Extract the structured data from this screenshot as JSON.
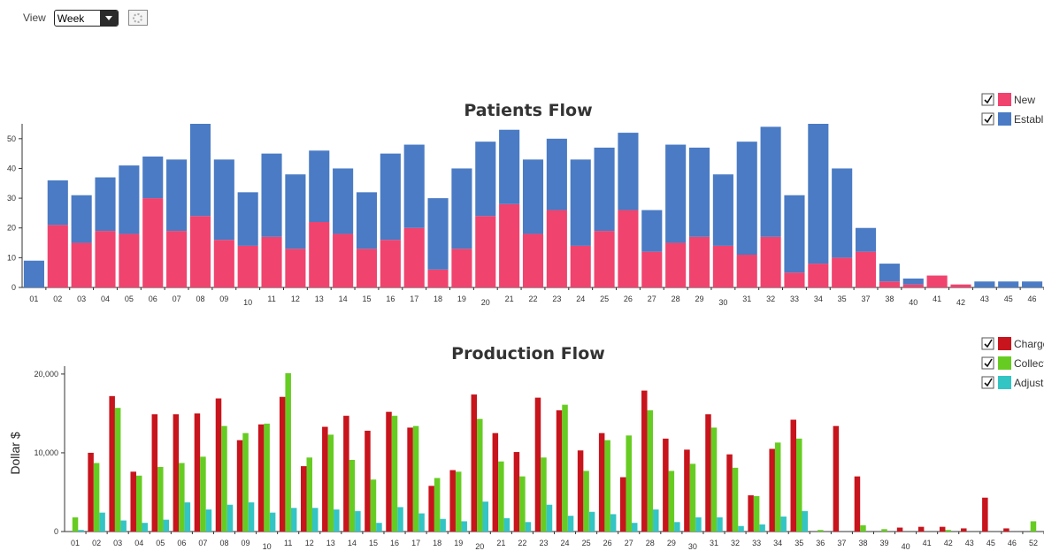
{
  "toolbar": {
    "view_label": "View",
    "view_value": "Week",
    "settings_icon": "gear-icon"
  },
  "chart_data": [
    {
      "type": "bar",
      "stacked": true,
      "title": "Patients Flow",
      "xlabel": "",
      "ylabel": "",
      "ylim": [
        0,
        55
      ],
      "yticks": [
        0,
        10,
        20,
        30,
        40,
        50
      ],
      "grid": false,
      "legend_position": "top-right",
      "categories": [
        "01",
        "02",
        "03",
        "04",
        "05",
        "06",
        "07",
        "08",
        "09",
        "10",
        "11",
        "12",
        "13",
        "14",
        "15",
        "16",
        "17",
        "18",
        "19",
        "20",
        "21",
        "22",
        "23",
        "24",
        "25",
        "26",
        "27",
        "28",
        "29",
        "30",
        "31",
        "32",
        "33",
        "34",
        "35",
        "37",
        "38",
        "40",
        "41",
        "42",
        "43",
        "45",
        "46"
      ],
      "series": [
        {
          "name": "New",
          "color": "#f0436e",
          "values": [
            0,
            21,
            15,
            19,
            18,
            30,
            19,
            24,
            16,
            14,
            17,
            13,
            22,
            18,
            13,
            16,
            20,
            6,
            13,
            24,
            28,
            18,
            26,
            14,
            19,
            26,
            12,
            15,
            17,
            14,
            11,
            17,
            5,
            8,
            10,
            12,
            2,
            1,
            4,
            1,
            0,
            0,
            0
          ]
        },
        {
          "name": "Established",
          "color": "#4a7bc4",
          "values": [
            9,
            15,
            16,
            18,
            23,
            14,
            24,
            31,
            27,
            18,
            28,
            25,
            24,
            22,
            19,
            29,
            28,
            24,
            27,
            25,
            25,
            25,
            24,
            29,
            28,
            26,
            14,
            33,
            30,
            24,
            38,
            37,
            26,
            47,
            30,
            8,
            6,
            2,
            0,
            0,
            2,
            2,
            2
          ]
        }
      ]
    },
    {
      "type": "bar",
      "title": "Production Flow",
      "xlabel": "",
      "ylabel": "Dollar $",
      "ylim": [
        0,
        21000
      ],
      "yticks": [
        "0",
        "10,000",
        "20,000"
      ],
      "grid": false,
      "legend_position": "top-right",
      "categories": [
        "01",
        "02",
        "03",
        "04",
        "05",
        "06",
        "07",
        "08",
        "09",
        "10",
        "11",
        "12",
        "13",
        "14",
        "15",
        "16",
        "17",
        "18",
        "19",
        "20",
        "21",
        "22",
        "23",
        "24",
        "25",
        "26",
        "27",
        "28",
        "29",
        "30",
        "31",
        "32",
        "33",
        "34",
        "35",
        "36",
        "37",
        "38",
        "39",
        "40",
        "41",
        "42",
        "43",
        "45",
        "46",
        "52"
      ],
      "series": [
        {
          "name": "Charges",
          "color": "#c8141c",
          "values": [
            0,
            10000,
            17200,
            7600,
            14900,
            14900,
            15000,
            16900,
            11600,
            13600,
            17100,
            8300,
            13300,
            14700,
            12800,
            15200,
            13200,
            5800,
            7800,
            17400,
            12500,
            10100,
            17000,
            15400,
            10300,
            12500,
            6900,
            17900,
            11800,
            10400,
            14900,
            9800,
            4600,
            10500,
            14200,
            0,
            13400,
            7000,
            0,
            500,
            600,
            600,
            400,
            4300,
            400,
            0
          ]
        },
        {
          "name": "Collections",
          "color": "#66cc22",
          "values": [
            1800,
            8700,
            15700,
            7100,
            8200,
            8700,
            9500,
            13400,
            12500,
            13700,
            20100,
            9400,
            12300,
            9100,
            6600,
            14700,
            13400,
            6800,
            7600,
            14300,
            8900,
            7000,
            9400,
            16100,
            7700,
            11600,
            12200,
            15400,
            7700,
            8600,
            13200,
            8100,
            4500,
            11300,
            11800,
            200,
            0,
            800,
            300,
            0,
            0,
            200,
            0,
            0,
            0,
            1300
          ]
        },
        {
          "name": "Adjustments",
          "color": "#33c4c4",
          "values": [
            200,
            2400,
            1400,
            1100,
            1500,
            3700,
            2800,
            3400,
            3700,
            2400,
            3000,
            3000,
            2800,
            2600,
            1100,
            3100,
            2300,
            1600,
            1300,
            3800,
            1700,
            1200,
            3400,
            2000,
            2500,
            2200,
            1100,
            2800,
            1200,
            1800,
            1800,
            700,
            900,
            1900,
            2600,
            0,
            0,
            0,
            0,
            0,
            0,
            0,
            0,
            0,
            0,
            0
          ]
        }
      ]
    }
  ]
}
